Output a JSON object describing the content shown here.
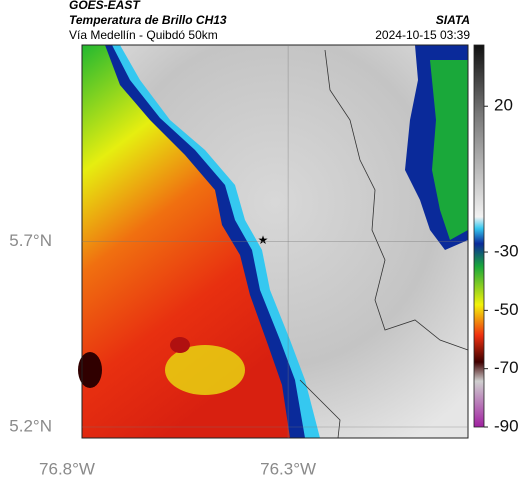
{
  "header": {
    "product": "GOES-EAST",
    "title": "Temperatura de Brillo CH13",
    "subtitle": "Vía Medellín - Quibdó 50km",
    "source": "SIATA",
    "datetime": "2024-10-15 03:39"
  },
  "map": {
    "xlim": [
      -76.8,
      -75.9
    ],
    "ylim": [
      5.2,
      6.23
    ],
    "xticks": [
      {
        "value": -76.8,
        "label": "76.8°W"
      },
      {
        "value": -76.3,
        "label": "76.3°W"
      }
    ],
    "yticks": [
      {
        "value": 5.7,
        "label": "5.7°N"
      },
      {
        "value": 5.2,
        "label": "5.2°N"
      }
    ],
    "grid": true
  },
  "colorbar": {
    "clim": [
      -90,
      41
    ],
    "ticks": [
      20,
      -30,
      -50,
      -70,
      -90
    ]
  }
}
